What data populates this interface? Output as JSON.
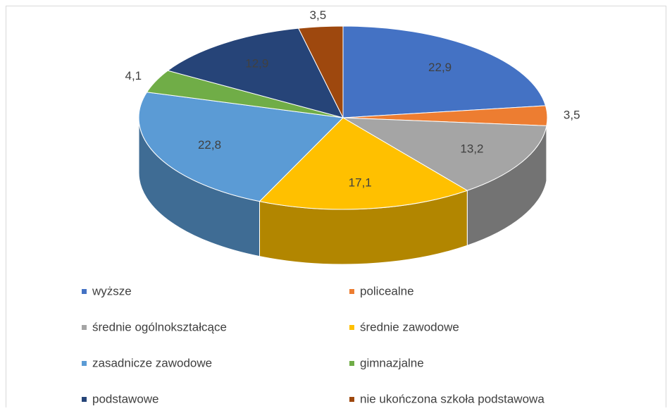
{
  "chart_data": {
    "type": "pie3d",
    "categories": [
      "wyższe",
      "policealne",
      "średnie ogólnokształcące",
      "średnie zawodowe",
      "zasadnicze zawodowe",
      "gimnazjalne",
      "podstawowe",
      "nie ukończona szkoła podstawowa"
    ],
    "values": [
      22.9,
      3.5,
      13.2,
      17.1,
      22.8,
      4.1,
      12.9,
      3.5
    ],
    "value_labels": [
      "22,9",
      "3,5",
      "13,2",
      "17,1",
      "22,8",
      "4,1",
      "12,9",
      "3,5"
    ],
    "colors": [
      "#4472c4",
      "#ed7d31",
      "#a5a5a5",
      "#ffc000",
      "#5b9bd5",
      "#70ad47",
      "#264478",
      "#9e480e"
    ],
    "legend": "bottom"
  }
}
